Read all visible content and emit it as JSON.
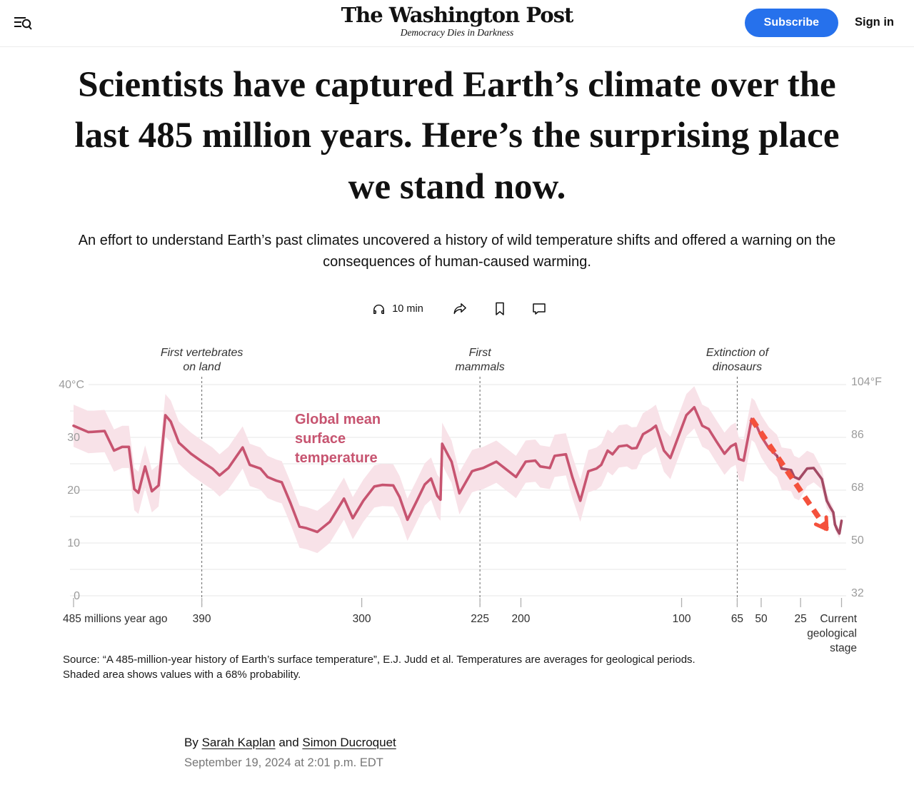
{
  "header": {
    "logo": "The Washington Post",
    "tagline": "Democracy Dies in Darkness",
    "subscribe_label": "Subscribe",
    "signin_label": "Sign in",
    "accent_color": "#2671ec"
  },
  "article": {
    "headline": "Scientists have captured Earth’s climate over the last 485 million years. Here’s the surprising place we stand now.",
    "dek": "An effort to understand Earth’s past climates uncovered a history of wild temperature shifts and offered a warning on the consequences of human-caused warming.",
    "listen_label": "10 min",
    "source_note": "Source: “A 485-million-year history of Earth’s surface temperature”, E.J. Judd et al. Temperatures are averages for geological periods. Shaded area shows values with a 68% probability.",
    "byline": {
      "prefix": "By",
      "author1": "Sarah Kaplan",
      "joiner": " and ",
      "author2": "Simon Ducroquet",
      "date": "September 19, 2024 at 2:01 p.m. EDT"
    }
  },
  "chart_data": {
    "type": "line",
    "title": "Global mean surface temperature",
    "label_lines": [
      "Global mean",
      "surface",
      "temperature"
    ],
    "xlabel": "millions of years ago",
    "ylabel_left": "°C",
    "ylabel_right": "°F",
    "ylim_c": [
      0,
      42
    ],
    "grid_step_c": 5,
    "band_note": "Shaded area shows values with a 68% probability",
    "band_halfwidth_c": 4.0,
    "series": [
      {
        "name": "Global mean surface temperature (°C)",
        "points": [
          [
            485,
            32.2
          ],
          [
            474,
            31.0
          ],
          [
            462,
            31.2
          ],
          [
            455,
            27.5
          ],
          [
            449,
            28.2
          ],
          [
            444,
            28.2
          ],
          [
            440,
            20.2
          ],
          [
            437,
            19.5
          ],
          [
            432,
            24.5
          ],
          [
            427,
            19.8
          ],
          [
            422,
            20.9
          ],
          [
            417,
            34.2
          ],
          [
            413,
            33.0
          ],
          [
            407,
            29.0
          ],
          [
            398,
            26.9
          ],
          [
            389,
            25.2
          ],
          [
            384,
            24.1
          ],
          [
            380,
            22.8
          ],
          [
            375,
            24.2
          ],
          [
            367,
            28.1
          ],
          [
            363,
            24.8
          ],
          [
            357,
            24.1
          ],
          [
            353,
            22.5
          ],
          [
            348,
            21.8
          ],
          [
            345,
            21.5
          ],
          [
            340,
            17.5
          ],
          [
            335,
            13.1
          ],
          [
            331,
            12.8
          ],
          [
            325,
            12.1
          ],
          [
            318,
            14.0
          ],
          [
            310,
            18.4
          ],
          [
            305,
            14.7
          ],
          [
            299,
            18.0
          ],
          [
            292,
            20.7
          ],
          [
            287,
            21.0
          ],
          [
            280,
            20.9
          ],
          [
            276,
            18.7
          ],
          [
            271,
            14.4
          ],
          [
            265,
            18.0
          ],
          [
            260,
            21.1
          ],
          [
            256,
            22.2
          ],
          [
            252,
            18.9
          ],
          [
            250,
            18.2
          ],
          [
            249,
            28.8
          ],
          [
            245,
            26.5
          ],
          [
            243,
            25.4
          ],
          [
            238,
            19.4
          ],
          [
            230,
            23.6
          ],
          [
            228,
            23.8
          ],
          [
            223,
            24.2
          ],
          [
            215,
            25.4
          ],
          [
            210,
            24.2
          ],
          [
            203,
            22.5
          ],
          [
            197,
            25.4
          ],
          [
            191,
            25.6
          ],
          [
            188,
            24.5
          ],
          [
            182,
            24.2
          ],
          [
            179,
            26.5
          ],
          [
            172,
            26.8
          ],
          [
            168,
            22.5
          ],
          [
            163,
            18.0
          ],
          [
            158,
            23.6
          ],
          [
            153,
            24.1
          ],
          [
            150,
            24.8
          ],
          [
            146,
            27.5
          ],
          [
            143,
            26.8
          ],
          [
            139,
            28.3
          ],
          [
            134,
            28.5
          ],
          [
            131,
            27.9
          ],
          [
            128,
            28.0
          ],
          [
            124,
            30.6
          ],
          [
            119,
            31.5
          ],
          [
            116,
            32.2
          ],
          [
            111,
            27.5
          ],
          [
            107,
            26.1
          ],
          [
            97,
            34.2
          ],
          [
            92,
            35.7
          ],
          [
            87,
            32.2
          ],
          [
            83,
            31.6
          ],
          [
            78,
            29.2
          ],
          [
            73,
            26.9
          ],
          [
            69,
            28.3
          ],
          [
            66,
            28.8
          ],
          [
            64,
            25.9
          ],
          [
            61,
            25.6
          ],
          [
            56,
            33.5
          ],
          [
            54,
            33.0
          ],
          [
            50,
            30.2
          ],
          [
            45,
            27.9
          ],
          [
            40,
            26.5
          ],
          [
            37,
            24.1
          ],
          [
            31,
            23.8
          ],
          [
            29,
            22.5
          ],
          [
            26,
            22.1
          ],
          [
            21,
            24.1
          ],
          [
            17,
            24.2
          ],
          [
            12,
            22.1
          ],
          [
            9,
            18.0
          ],
          [
            7,
            16.8
          ],
          [
            5,
            15.8
          ],
          [
            4,
            13.5
          ],
          [
            2.6,
            12.5
          ],
          [
            1.3,
            11.8
          ],
          [
            0,
            14.2
          ]
        ]
      }
    ],
    "x_ticks": [
      {
        "ma": 485,
        "label": "485 millions year ago",
        "align": "start"
      },
      {
        "ma": 390,
        "label": "390",
        "align": "middle"
      },
      {
        "ma": 300,
        "label": "300",
        "align": "middle"
      },
      {
        "ma": 225,
        "label": "225",
        "align": "middle"
      },
      {
        "ma": 200,
        "label": "200",
        "align": "middle"
      },
      {
        "ma": 100,
        "label": "100",
        "align": "middle"
      },
      {
        "ma": 65,
        "label": "65",
        "align": "middle"
      },
      {
        "ma": 50,
        "label": "50",
        "align": "middle"
      },
      {
        "ma": 25,
        "label": "25",
        "align": "middle"
      },
      {
        "ma": 0,
        "label": "Current geological stage",
        "lines": [
          "Current",
          "geological",
          "stage"
        ],
        "align": "end"
      }
    ],
    "x_axis_anchors": [
      [
        485,
        0.0
      ],
      [
        390,
        0.166
      ],
      [
        300,
        0.373
      ],
      [
        225,
        0.526
      ],
      [
        200,
        0.579
      ],
      [
        100,
        0.787
      ],
      [
        65,
        0.859
      ],
      [
        50,
        0.89
      ],
      [
        25,
        0.941
      ],
      [
        0,
        0.994
      ]
    ],
    "y_ticks": [
      {
        "c": 40,
        "left": "40°C",
        "right": "104°F"
      },
      {
        "c": 30,
        "left": "30",
        "right": "86"
      },
      {
        "c": 20,
        "left": "20",
        "right": "68"
      },
      {
        "c": 10,
        "left": "10",
        "right": "50"
      },
      {
        "c": 0,
        "left": "0",
        "right": "32"
      }
    ],
    "annotations": [
      {
        "ma": 390,
        "lines": [
          "First vertebrates",
          "on land"
        ]
      },
      {
        "ma": 225,
        "lines": [
          "First",
          "mammals"
        ]
      },
      {
        "ma": 65,
        "lines": [
          "Extinction of",
          "dinosaurs"
        ]
      }
    ],
    "trend_arrow": {
      "from_ma": 56,
      "from_c": 33.5,
      "to_ma": 9,
      "to_c": 12.6
    },
    "dark_segment_from_ma": 40,
    "colors": {
      "line": "#c75470",
      "line_dark": "#a34a64",
      "band": "#f8e2e8",
      "arrow": "#f4513c",
      "grid": "#e7e7e7",
      "y_label": "#9b9b9b",
      "x_label": "#2f2f2f",
      "annotation": "#333333",
      "dash_line": "#666666",
      "tick": "#b0b0b0"
    },
    "legend_position": "none",
    "grid": true
  }
}
